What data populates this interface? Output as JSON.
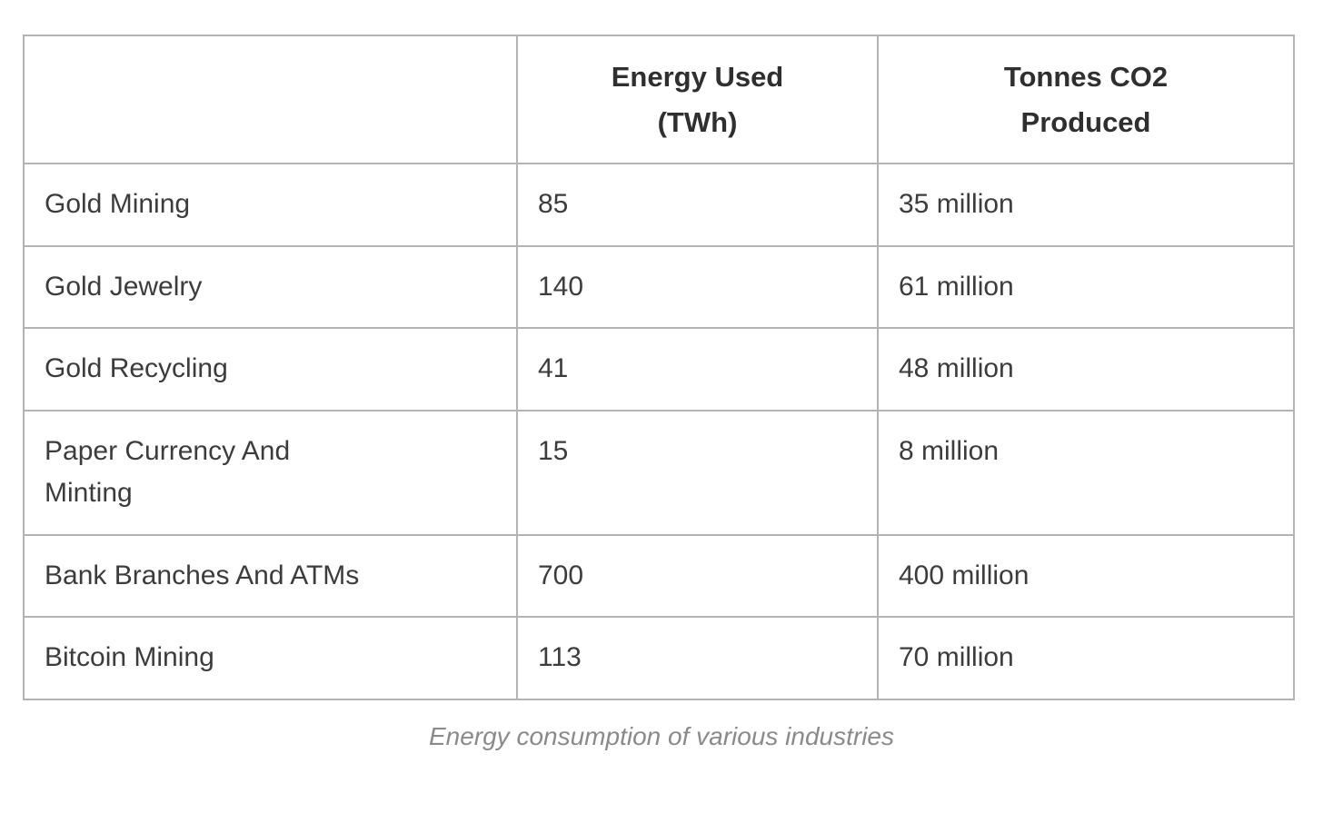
{
  "table": {
    "columns": [
      {
        "label": ""
      },
      {
        "label": "Energy Used\n(TWh)"
      },
      {
        "label": "Tonnes CO2\nProduced"
      }
    ],
    "rows": [
      {
        "label": "Gold Mining",
        "energy_twh": "85",
        "co2": "35 million"
      },
      {
        "label": "Gold Jewelry",
        "energy_twh": "140",
        "co2": "61 million"
      },
      {
        "label": "Gold Recycling",
        "energy_twh": "41",
        "co2": "48 million"
      },
      {
        "label": "Paper Currency And\nMinting",
        "energy_twh": "15",
        "co2": "8 million"
      },
      {
        "label": "Bank Branches And ATMs",
        "energy_twh": "700",
        "co2": "400 million"
      },
      {
        "label": "Bitcoin Mining",
        "energy_twh": "113",
        "co2": "70 million"
      }
    ]
  },
  "caption": "Energy consumption of various industries",
  "colors": {
    "border": "#b3b3b3",
    "body_text": "#3c3c3c",
    "header_text": "#2f2f2f",
    "caption_text": "#8a8a8a",
    "background": "#ffffff"
  },
  "chart_data": {
    "type": "table",
    "title": "Energy consumption of various industries",
    "columns": [
      "",
      "Energy Used (TWh)",
      "Tonnes CO2 Produced"
    ],
    "categories": [
      "Gold Mining",
      "Gold Jewelry",
      "Gold Recycling",
      "Paper Currency And Minting",
      "Bank Branches And ATMs",
      "Bitcoin Mining"
    ],
    "series": [
      {
        "name": "Energy Used (TWh)",
        "values": [
          85,
          140,
          41,
          15,
          700,
          113
        ]
      },
      {
        "name": "Tonnes CO2 Produced (millions of tonnes)",
        "values": [
          35,
          61,
          48,
          8,
          400,
          70
        ]
      }
    ],
    "cell_display_values": {
      "tonnes_co2_produced": [
        "35 million",
        "61 million",
        "48 million",
        "8 million",
        "400 million",
        "70 million"
      ]
    },
    "layout": {
      "grid": true,
      "caption_position": "bottom-center"
    }
  }
}
